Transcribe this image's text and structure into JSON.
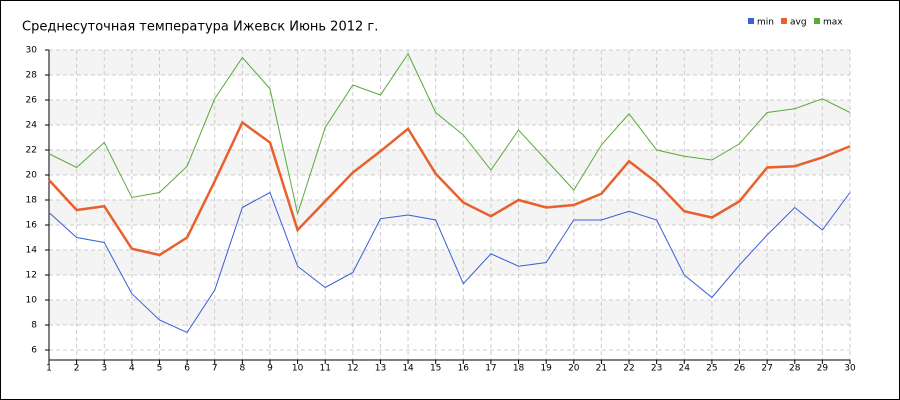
{
  "chart_data": {
    "type": "line",
    "title": "Среднесуточная температура Ижевск  Июнь 2012 г.",
    "x": [
      1,
      2,
      3,
      4,
      5,
      6,
      7,
      8,
      9,
      10,
      11,
      12,
      13,
      14,
      15,
      16,
      17,
      18,
      19,
      20,
      21,
      22,
      23,
      24,
      25,
      26,
      27,
      28,
      29,
      30
    ],
    "xlim": [
      1,
      30
    ],
    "ylim": [
      5.2,
      30
    ],
    "yticks": [
      6,
      8,
      10,
      12,
      14,
      16,
      18,
      20,
      22,
      24,
      26,
      28,
      30
    ],
    "grid": true,
    "legend": "top-right",
    "series": [
      {
        "name": "min",
        "color": "#3a5fd6",
        "values": [
          17.0,
          15.0,
          14.6,
          10.5,
          8.4,
          7.4,
          10.8,
          17.4,
          18.6,
          12.7,
          11.0,
          12.2,
          16.5,
          16.8,
          16.4,
          11.3,
          13.7,
          12.7,
          13.0,
          16.4,
          16.4,
          17.1,
          16.4,
          12.0,
          10.2,
          12.8,
          15.2,
          17.4,
          15.6,
          18.6
        ]
      },
      {
        "name": "avg",
        "color": "#e8602c",
        "values": [
          19.6,
          17.2,
          17.5,
          14.1,
          13.6,
          15.0,
          19.5,
          24.2,
          22.6,
          15.6,
          17.9,
          20.2,
          21.9,
          23.7,
          20.1,
          17.8,
          16.7,
          18.0,
          17.4,
          17.6,
          18.5,
          21.1,
          19.4,
          17.1,
          16.6,
          17.9,
          20.6,
          20.7,
          21.4,
          22.3
        ]
      },
      {
        "name": "max",
        "color": "#5aaa3a",
        "values": [
          21.7,
          20.6,
          22.6,
          18.2,
          18.6,
          20.7,
          26.1,
          29.4,
          26.9,
          16.9,
          23.8,
          27.2,
          26.4,
          29.7,
          25.0,
          23.2,
          20.4,
          23.6,
          21.2,
          18.8,
          22.4,
          24.9,
          22.0,
          21.5,
          21.2,
          22.5,
          25.0,
          25.3,
          26.1,
          25.0
        ]
      }
    ]
  }
}
